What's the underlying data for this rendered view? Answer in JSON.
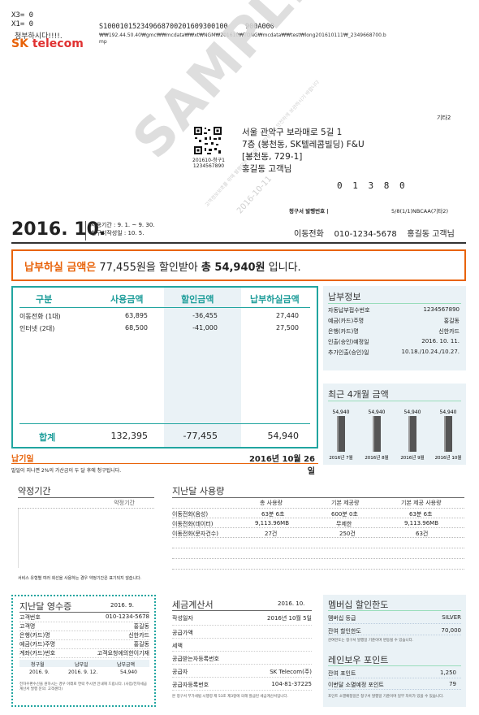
{
  "header": {
    "debug": [
      "X3= 0",
      "X1= 0"
    ],
    "debug_overlay": "청부하시다!!!!.",
    "brand_sk": "SK",
    "brand_telecom": "telecom",
    "code_line": "S100010152349668700201609300100",
    "code_suffix": "900A000",
    "path_line": "₩₩192.44.50.40₩gmc₩₩mcdata₩₩xt₩NGM₩201610₩TONG₩mcdata₩₩test₩long201610111₩_2349668700.b",
    "path_line2": "mp"
  },
  "watermark": {
    "sample": "SAMPLE",
    "date": "2016-10-11",
    "fine_print": "고객정보보호를 위해 발행되는 회사의 수신자용으로 안전하게 보관하시기 바랍니다"
  },
  "address": {
    "tag": "기타2",
    "lines": [
      "서울 관악구 보라매로 5길 1",
      "7층 (봉천동, SK텔레콤빌딩) F&U",
      "[봉천동, 729-1]",
      "홍길동 고객님"
    ],
    "postal": "0 1 3 8 0",
    "qr_caption1": "201610-청구1",
    "qr_caption2": "1234567890",
    "issue_label": "청구서 발행번호 |",
    "issue_value": "5/8(1/1)NBCAA(기타2)"
  },
  "period": {
    "year": "2016.",
    "month": "10.",
    "usage_period": "사용기간 : 9. 1. ~ 9. 30.",
    "issue_date": "청구서작성일 : 10. 5.",
    "customer_line": "이동전화    010-1234-5678    홍길동 고객님"
  },
  "notice": {
    "prefix": "납부하실 금액은",
    "middle": " 77,455원을 할인받아 ",
    "total": "총 54,940원",
    "suffix": " 입니다."
  },
  "bill_table": {
    "headers": [
      "구분",
      "사용금액",
      "할인금액",
      "납부하실금액"
    ],
    "rows": [
      {
        "item": "이동전화 (1대)",
        "usage": "63,895",
        "discount": "-36,455",
        "pay": "27,440"
      },
      {
        "item": "인터넷 (2대)",
        "usage": "68,500",
        "discount": "-41,000",
        "pay": "27,500"
      }
    ],
    "total_label": "합계",
    "total_usage": "132,395",
    "total_discount": "-77,455",
    "total_pay": "54,940"
  },
  "payment_info": {
    "title": "납부정보",
    "rows": [
      {
        "label": "자동납부접수번호",
        "value": "1234567890"
      },
      {
        "label": "예금(카드)주명",
        "value": "홍길동"
      },
      {
        "label": "은행(카드)명",
        "value": "신한카드"
      },
      {
        "label": "인출(승인)예정일",
        "value": "2016. 10. 11."
      },
      {
        "label": "추가인출(승인)일",
        "value": "10.18./10.24./10.27."
      }
    ]
  },
  "recent_chart": {
    "title": "최근 4개월 금액"
  },
  "chart_data": {
    "type": "bar",
    "title": "최근 4개월 금액",
    "categories": [
      "2016년 7월",
      "2016년 8월",
      "2016년 9월",
      "2016년 10월"
    ],
    "values": [
      54940,
      54940,
      54940,
      54940
    ],
    "value_labels": [
      "54,940",
      "54,940",
      "54,940",
      "54,940"
    ],
    "xlabel": "",
    "ylabel": "",
    "grid": false,
    "bar_color": "#555555"
  },
  "due": {
    "label": "납기일",
    "date": "2016년 10월 26일",
    "note": "말일이 지나면 2%의 가산금이 두 달 후에 청구됩니다."
  },
  "contract": {
    "title": "약정기간",
    "sub": "약정기간",
    "note": "서비스 유형별 여러 회선을 사용하는 경우 약정기간은 표기되지 않습니다."
  },
  "last_month": {
    "title": "지난달 사용량",
    "headers": [
      "",
      "총 사용량",
      "기본 제공량",
      "기본 제공 사용량"
    ],
    "rows": [
      [
        "이동전화(음성)",
        "63분 6초",
        "600분 0초",
        "63분 6초"
      ],
      [
        "이동전화(데이터)",
        "9,113.96MB",
        "무제한",
        "9,113.96MB"
      ],
      [
        "이동전화(문자건수)",
        "27건",
        "250건",
        "63건"
      ]
    ]
  },
  "receipt": {
    "title": "지난달 영수증",
    "date": "2016. 9.",
    "rows": [
      {
        "label": "고객번호",
        "value": "010-1234-5678"
      },
      {
        "label": "고객명",
        "value": "홍길동"
      },
      {
        "label": "은행(카드)명",
        "value": "신한카드"
      },
      {
        "label": "예금(카드)주명",
        "value": "홍길동"
      },
      {
        "label": "계좌(카드)번호",
        "value": "고객요청에의한이기재"
      }
    ],
    "sub_headers": [
      "청구월",
      "납부일",
      "납부금액"
    ],
    "sub_values": [
      "2016. 9.",
      "2016. 9. 12.",
      "54,940"
    ],
    "footer": "전자우편수신을 원하시는 경우 아래로 연락 주시면 안내해 드립니다. (사업/전자세금계산서 발행 문의: 고객센터)"
  },
  "tax_invoice": {
    "title": "세금계산서",
    "date": "2016. 10.",
    "rows": [
      {
        "label": "작성일자",
        "value": "2016년 10월 5일"
      },
      {
        "label": "공급가액",
        "value": ""
      },
      {
        "label": "세액",
        "value": ""
      },
      {
        "label": "공급받는자등록번호",
        "value": ""
      },
      {
        "label": "공급자",
        "value": "SK Telecom(주)"
      },
      {
        "label": "공급자등록번호",
        "value": "104-81-37225"
      }
    ],
    "footer": "본 청구서 부가세법 시행령 제 53조 제3항에 의해 발급된 세금계산서입니다."
  },
  "membership": {
    "title": "멤버십 할인한도",
    "rows": [
      {
        "label": "멤버십 등급",
        "value": "SILVER"
      },
      {
        "label": "잔여 할인한도",
        "value": "70,000"
      }
    ],
    "note": "잔여한도는 청구서 발행일 기준이며 변동될 수 있습니다."
  },
  "rainbow": {
    "title": "레인보우 포인트",
    "rows": [
      {
        "label": "잔여 포인트",
        "value": "1,250"
      },
      {
        "label": "이번달 소멸예정 포인트",
        "value": "79"
      }
    ],
    "note": "포인트 소멸예정일은 청구서 발행일 기준이며 일부 차이가 있을 수 있습니다."
  }
}
